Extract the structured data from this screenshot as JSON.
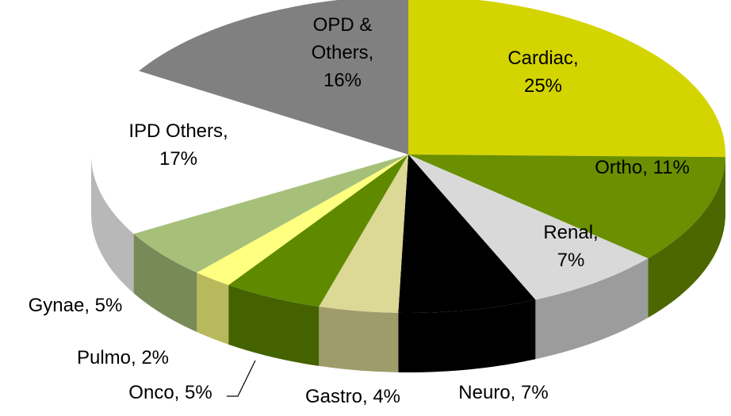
{
  "chart_data": {
    "type": "pie3d",
    "categories": [
      "Cardiac",
      "Ortho",
      "Renal",
      "Neuro",
      "Gastro",
      "Onco",
      "Pulmo",
      "Gynae",
      "IPD Others",
      "OPD & Others"
    ],
    "values": [
      25,
      11,
      7,
      7,
      4,
      5,
      2,
      5,
      17,
      16
    ],
    "value_labels": [
      "Cardiac, 25%",
      "Ortho, 11%",
      "Renal, 7%",
      "Neuro, 7%",
      "Gastro, 4%",
      "Onco, 5%",
      "Pulmo, 2%",
      "Gynae, 5%",
      "IPD Others, 17%",
      "OPD & Others, 16%"
    ],
    "colors": [
      "#d4d400",
      "#6a8f00",
      "#d9d9d9",
      "#000000",
      "#dcd895",
      "#5f8a00",
      "#ffff80",
      "#a6c07a",
      "#ffffff",
      "#808080"
    ]
  }
}
